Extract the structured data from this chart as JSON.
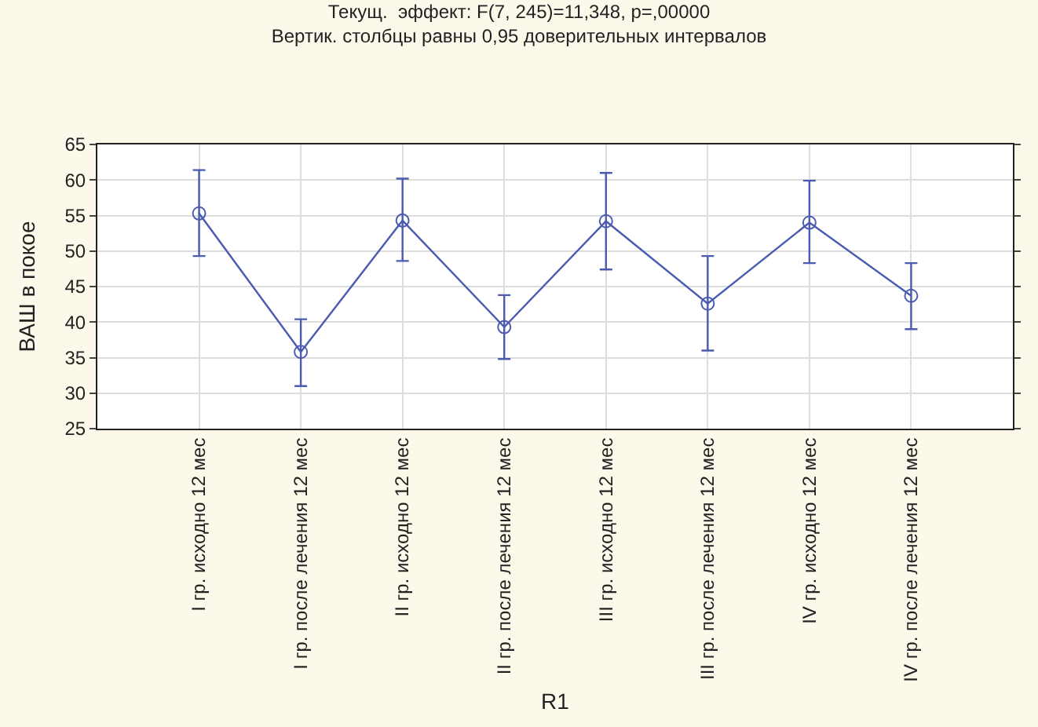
{
  "chart_data": {
    "type": "line",
    "title": "Текущ.  эффект: F(7, 245)=11,348, p=,00000",
    "subtitle": "Вертик. столбцы равны 0,95 доверительных интервалов",
    "xlabel": "R1",
    "ylabel": "ВАШ в покое",
    "categories": [
      "I гр. исходно 12 мес",
      "I гр. после лечения 12 мес",
      "II гр. исходно 12 мес",
      "II гр. после лечения 12 мес",
      "III гр. исходно 12 мес",
      "III гр. после лечения 12 мес",
      "IV гр. исходно 12 мес",
      "IV гр. после лечения 12 мес"
    ],
    "series": [
      {
        "color": "#4a5bb0",
        "values": [
          55.3,
          35.8,
          54.3,
          39.3,
          54.2,
          42.6,
          54.0,
          43.7
        ],
        "errors": [
          [
            49.3,
            61.4
          ],
          [
            31.0,
            40.4
          ],
          [
            48.6,
            60.2
          ],
          [
            34.8,
            43.8
          ],
          [
            47.4,
            61.0
          ],
          [
            36.0,
            49.3
          ],
          [
            48.3,
            59.9
          ],
          [
            39.0,
            48.3
          ]
        ]
      }
    ],
    "ylim": [
      25,
      65
    ],
    "yticks": [
      25,
      30,
      35,
      40,
      45,
      50,
      55,
      60,
      65
    ],
    "grid": true,
    "marker": "circle",
    "line_style": "solid"
  }
}
